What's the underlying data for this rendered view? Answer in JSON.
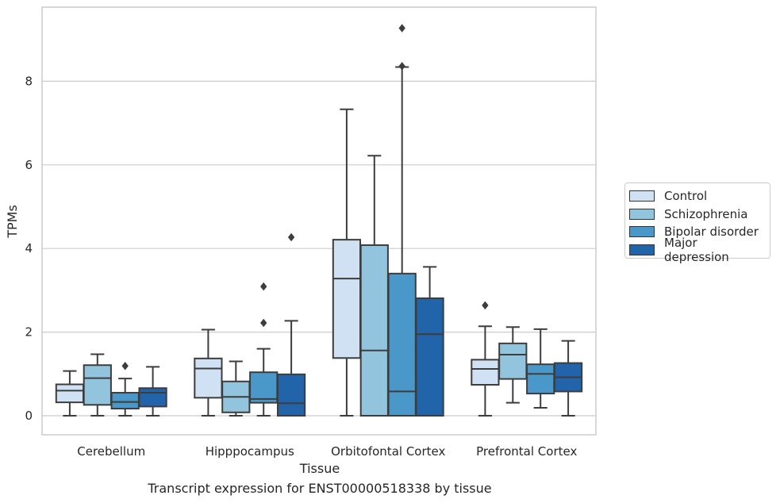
{
  "chart_data": {
    "type": "box",
    "xlabel": "Tissue",
    "ylabel": "TPMs",
    "caption": "Transcript expression for ENST00000518338 by tissue",
    "ylim": [
      -0.45,
      9.75
    ],
    "yticks": [
      0,
      2,
      4,
      6,
      8
    ],
    "ytick_labels": [
      "0",
      "2",
      "4",
      "6",
      "8"
    ],
    "grid": "horizontal",
    "legend_position": "right",
    "categories": [
      "Cerebellum",
      "Hipppocampus",
      "Orbitofontal Cortex",
      "Prefrontal Cortex"
    ],
    "series": [
      {
        "name": "Control",
        "color": "#cfe1f2",
        "boxes": [
          {
            "min": 0,
            "q1": 0.32,
            "median": 0.6,
            "q3": 0.75,
            "max": 1.07,
            "outliers": []
          },
          {
            "min": 0,
            "q1": 0.43,
            "median": 1.13,
            "q3": 1.37,
            "max": 2.06,
            "outliers": []
          },
          {
            "min": 0,
            "q1": 1.38,
            "median": 3.28,
            "q3": 4.21,
            "max": 7.33,
            "outliers": []
          },
          {
            "min": 0,
            "q1": 0.74,
            "median": 1.12,
            "q3": 1.34,
            "max": 2.14,
            "outliers": [
              2.64
            ]
          }
        ]
      },
      {
        "name": "Schizophrenia",
        "color": "#93c4de",
        "boxes": [
          {
            "min": 0,
            "q1": 0.26,
            "median": 0.9,
            "q3": 1.21,
            "max": 1.47,
            "outliers": []
          },
          {
            "min": 0,
            "q1": 0.08,
            "median": 0.45,
            "q3": 0.82,
            "max": 1.3,
            "outliers": []
          },
          {
            "min": 0,
            "q1": 0,
            "median": 1.56,
            "q3": 4.08,
            "max": 6.22,
            "outliers": []
          },
          {
            "min": 0.31,
            "q1": 0.88,
            "median": 1.46,
            "q3": 1.73,
            "max": 2.12,
            "outliers": []
          }
        ]
      },
      {
        "name": "Bipolar disorder",
        "color": "#4a98c9",
        "boxes": [
          {
            "min": 0,
            "q1": 0.17,
            "median": 0.33,
            "q3": 0.55,
            "max": 0.89,
            "outliers": [
              1.19
            ]
          },
          {
            "min": 0,
            "q1": 0.31,
            "median": 0.4,
            "q3": 1.04,
            "max": 1.6,
            "outliers": [
              2.22,
              3.09
            ]
          },
          {
            "min": 0,
            "q1": 0,
            "median": 0.58,
            "q3": 3.4,
            "max": 8.34,
            "outliers": [
              8.36,
              9.27
            ]
          },
          {
            "min": 0.19,
            "q1": 0.53,
            "median": 1.0,
            "q3": 1.23,
            "max": 2.07,
            "outliers": []
          }
        ]
      },
      {
        "name": "Major depression",
        "color": "#2264aa",
        "boxes": [
          {
            "min": 0,
            "q1": 0.22,
            "median": 0.55,
            "q3": 0.66,
            "max": 1.17,
            "outliers": []
          },
          {
            "min": 0,
            "q1": 0,
            "median": 0.3,
            "q3": 0.99,
            "max": 2.27,
            "outliers": [
              4.27
            ]
          },
          {
            "min": 0,
            "q1": 0,
            "median": 1.95,
            "q3": 2.81,
            "max": 3.56,
            "outliers": []
          },
          {
            "min": 0,
            "q1": 0.58,
            "median": 0.92,
            "q3": 1.26,
            "max": 1.79,
            "outliers": []
          }
        ]
      }
    ]
  }
}
